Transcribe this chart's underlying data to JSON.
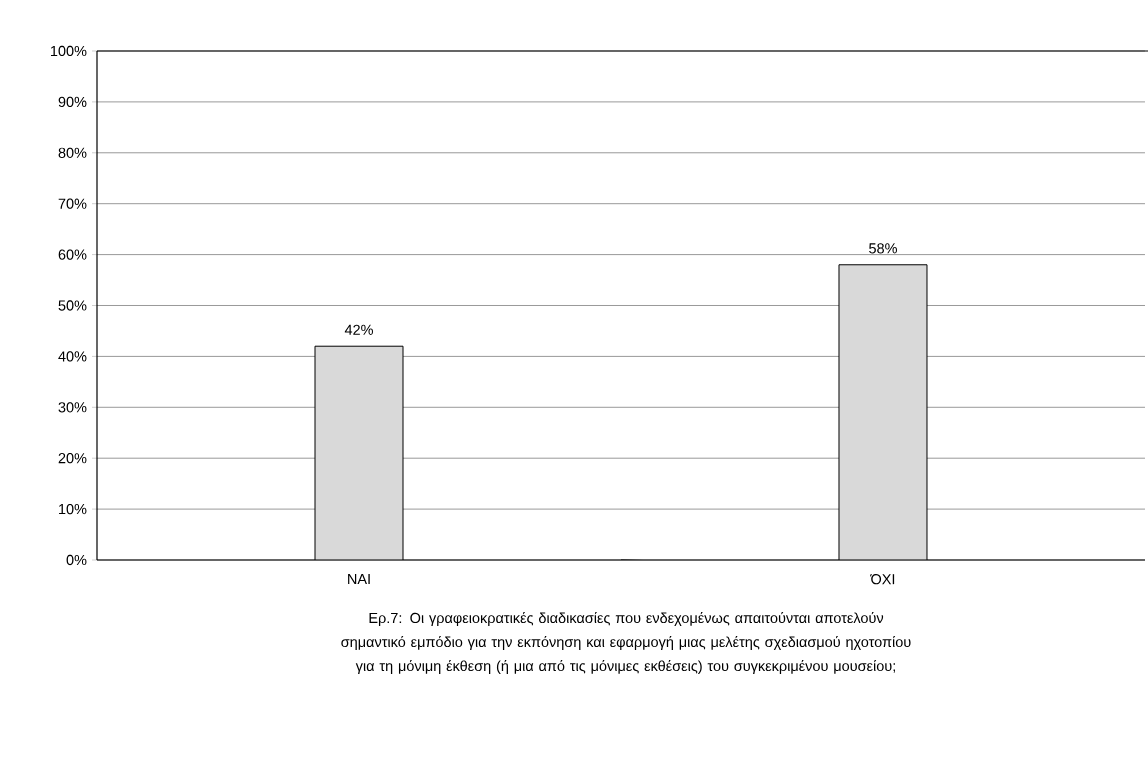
{
  "chart_data": {
    "type": "bar",
    "categories": [
      "ΝΑΙ",
      "ΌΧΙ"
    ],
    "values": [
      42,
      58
    ],
    "value_labels": [
      "42%",
      "58%"
    ],
    "color": "#d9d9d9",
    "ylim": [
      0,
      100
    ],
    "yticks": [
      {
        "value": 0,
        "label": "0%"
      },
      {
        "value": 10,
        "label": "10%"
      },
      {
        "value": 20,
        "label": "20%"
      },
      {
        "value": 30,
        "label": "30%"
      },
      {
        "value": 40,
        "label": "40%"
      },
      {
        "value": 50,
        "label": "50%"
      },
      {
        "value": 60,
        "label": "60%"
      },
      {
        "value": 70,
        "label": "70%"
      },
      {
        "value": 80,
        "label": "80%"
      },
      {
        "value": 90,
        "label": "90%"
      },
      {
        "value": 100,
        "label": "100%"
      }
    ],
    "grid": "y",
    "annotations": [
      "Ερ.7: Οι γραφειοκρατικές διαδικασίες που ενδεχομένως απαιτούνται αποτελούν σημαντικό εμπόδιο για την εκπόνηση και εφαρμογή μιας μελέτης σχεδιασμού ηχοτοπίου για τη μόνιμη έκθεση (ή μια από τις μόνιμες εκθέσεις) του συγκεκριμένου μουσείου;"
    ]
  }
}
